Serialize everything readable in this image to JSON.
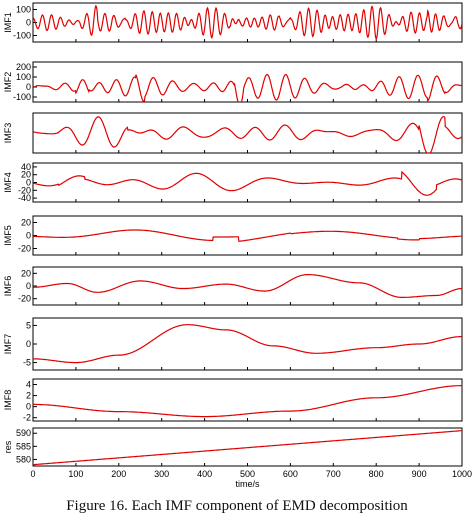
{
  "caption": "Figure 16. Each IMF component of EMD decomposition",
  "chart_data": [
    {
      "type": "line",
      "ylabel": "IMF1",
      "ytick_labels": [
        "100",
        "0",
        "-100"
      ],
      "ylim": [
        -150,
        150
      ],
      "xlim": [
        0,
        1000
      ],
      "color": "#e00000",
      "shape": "noise",
      "amp": 55,
      "freq": 45,
      "seed": 1,
      "bursts": [
        [
          110,
          150,
          2.3
        ],
        [
          205,
          215,
          1.6
        ],
        [
          460,
          480,
          1.6
        ],
        [
          590,
          600,
          1.4
        ],
        [
          920,
          990,
          1.8
        ]
      ]
    },
    {
      "type": "line",
      "ylabel": "IMF2",
      "ytick_labels": [
        "200",
        "100",
        "0",
        "-100"
      ],
      "ylim": [
        -150,
        250
      ],
      "xlim": [
        0,
        1000
      ],
      "color": "#e00000",
      "shape": "noise",
      "amp": 75,
      "freq": 22,
      "seed": 2,
      "bursts": [
        [
          100,
          130,
          1.8
        ],
        [
          240,
          260,
          1.4
        ],
        [
          470,
          490,
          2.5
        ],
        [
          720,
          760,
          1.5
        ],
        [
          920,
          960,
          1.3
        ]
      ]
    },
    {
      "type": "line",
      "ylabel": "IMF3",
      "ytick_labels": [],
      "ylim": [
        -150,
        150
      ],
      "xlim": [
        0,
        1000
      ],
      "color": "#e00000",
      "shape": "noise",
      "amp": 45,
      "freq": 12,
      "seed": 3,
      "bursts": [
        [
          60,
          220,
          2.0
        ],
        [
          900,
          960,
          2.4
        ]
      ]
    },
    {
      "type": "line",
      "ylabel": "IMF4",
      "ytick_labels": [
        "40",
        "20",
        "0",
        "-20",
        "-40"
      ],
      "ylim": [
        -50,
        50
      ],
      "xlim": [
        0,
        1000
      ],
      "color": "#e00000",
      "shape": "noise",
      "amp": 13,
      "freq": 6.5,
      "seed": 4,
      "bursts": [
        [
          60,
          120,
          1.7
        ],
        [
          860,
          940,
          3.0
        ]
      ]
    },
    {
      "type": "line",
      "ylabel": "IMF5",
      "ytick_labels": [
        "20",
        "0",
        "-20"
      ],
      "ylim": [
        -30,
        30
      ],
      "xlim": [
        0,
        1000
      ],
      "color": "#e00000",
      "shape": "noise",
      "amp": 10,
      "freq": 2.8,
      "seed": 5,
      "bursts": [
        [
          420,
          480,
          0.3
        ],
        [
          480,
          600,
          1.4
        ],
        [
          850,
          900,
          1.4
        ]
      ]
    },
    {
      "type": "line",
      "ylabel": "IMF6",
      "ytick_labels": [
        "20",
        "0",
        "-20"
      ],
      "ylim": [
        -30,
        30
      ],
      "xlim": [
        0,
        1000
      ],
      "color": "#e00000",
      "shape": "keys",
      "keys": [
        [
          0,
          -2
        ],
        [
          80,
          4
        ],
        [
          150,
          -10
        ],
        [
          250,
          8
        ],
        [
          350,
          -4
        ],
        [
          450,
          3
        ],
        [
          540,
          -8
        ],
        [
          640,
          18
        ],
        [
          760,
          5
        ],
        [
          860,
          -18
        ],
        [
          940,
          -15
        ],
        [
          1000,
          -4
        ]
      ]
    },
    {
      "type": "line",
      "ylabel": "IMF7",
      "ytick_labels": [
        "5",
        "0",
        "-5"
      ],
      "ylim": [
        -7,
        7
      ],
      "xlim": [
        0,
        1000
      ],
      "color": "#e00000",
      "shape": "keys",
      "keys": [
        [
          0,
          -4
        ],
        [
          100,
          -5
        ],
        [
          200,
          -3
        ],
        [
          360,
          5.2
        ],
        [
          450,
          3.8
        ],
        [
          560,
          -0.5
        ],
        [
          660,
          -2.5
        ],
        [
          800,
          -1
        ],
        [
          900,
          0
        ],
        [
          1000,
          2
        ]
      ]
    },
    {
      "type": "line",
      "ylabel": "IMF8",
      "ytick_labels": [
        "4",
        "2",
        "0",
        "-2"
      ],
      "ylim": [
        -2.6,
        5
      ],
      "xlim": [
        0,
        1000
      ],
      "color": "#e00000",
      "shape": "keys",
      "keys": [
        [
          0,
          0.4
        ],
        [
          200,
          -0.9
        ],
        [
          400,
          -1.8
        ],
        [
          600,
          -0.8
        ],
        [
          800,
          1.6
        ],
        [
          1000,
          3.8
        ]
      ]
    },
    {
      "type": "line",
      "ylabel": "res",
      "ytick_labels": [
        "590",
        "585",
        "580"
      ],
      "ylim": [
        577.5,
        592
      ],
      "xlim": [
        0,
        1000
      ],
      "color": "#e00000",
      "shape": "keys",
      "xlabel": "time/s",
      "xtick_labels": [
        "0",
        "100",
        "200",
        "300",
        "400",
        "500",
        "600",
        "700",
        "800",
        "900",
        "1000"
      ],
      "keys": [
        [
          0,
          578
        ],
        [
          1000,
          591
        ]
      ]
    }
  ]
}
